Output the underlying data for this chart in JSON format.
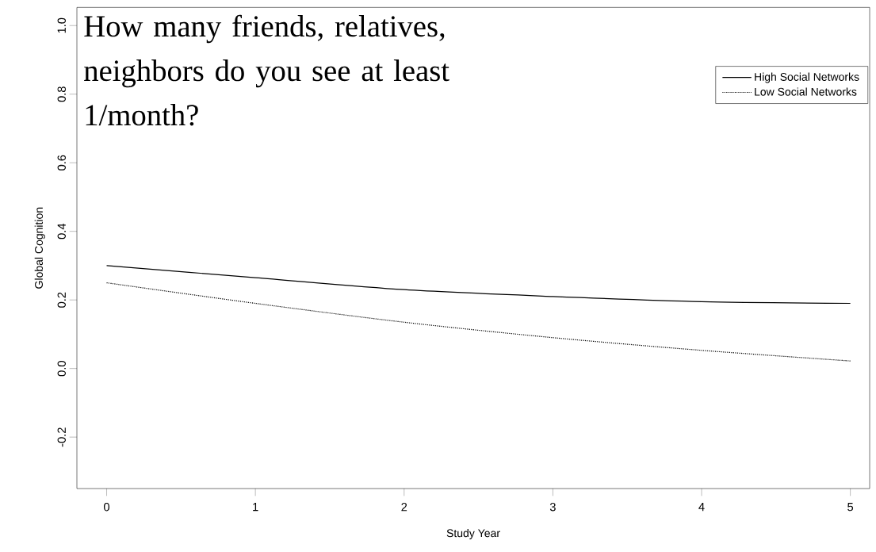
{
  "chart_data": {
    "type": "line",
    "title": "How many friends, relatives, neighbors do you see at least 1/month?",
    "xlabel": "Study Year",
    "ylabel": "Global Cognition",
    "x": [
      0,
      1,
      2,
      3,
      4,
      5
    ],
    "series": [
      {
        "name": "High Social Networks",
        "color": "#000000",
        "line_style": "solid",
        "values": [
          0.3,
          0.265,
          0.23,
          0.21,
          0.195,
          0.19
        ]
      },
      {
        "name": "Low Social Networks",
        "color": "#000000",
        "line_style": "dotted",
        "values": [
          0.25,
          0.19,
          0.135,
          0.09,
          0.053,
          0.022
        ]
      }
    ],
    "xlim": [
      -0.2,
      5.13
    ],
    "ylim": [
      -0.35,
      1.053
    ],
    "xticks": [
      0,
      1,
      2,
      3,
      4,
      5
    ],
    "yticks": [
      {
        "value": -0.2,
        "label": "-0.2"
      },
      {
        "value": 0,
        "label": "0.0"
      },
      {
        "value": 0.2,
        "label": "0.2"
      },
      {
        "value": 0.4,
        "label": "0.4"
      },
      {
        "value": 0.6,
        "label": "0.6"
      },
      {
        "value": 0.8,
        "label": "0.8"
      },
      {
        "value": 1,
        "label": "1.0"
      }
    ],
    "grid": false,
    "legend": "top right",
    "marker": "none"
  }
}
